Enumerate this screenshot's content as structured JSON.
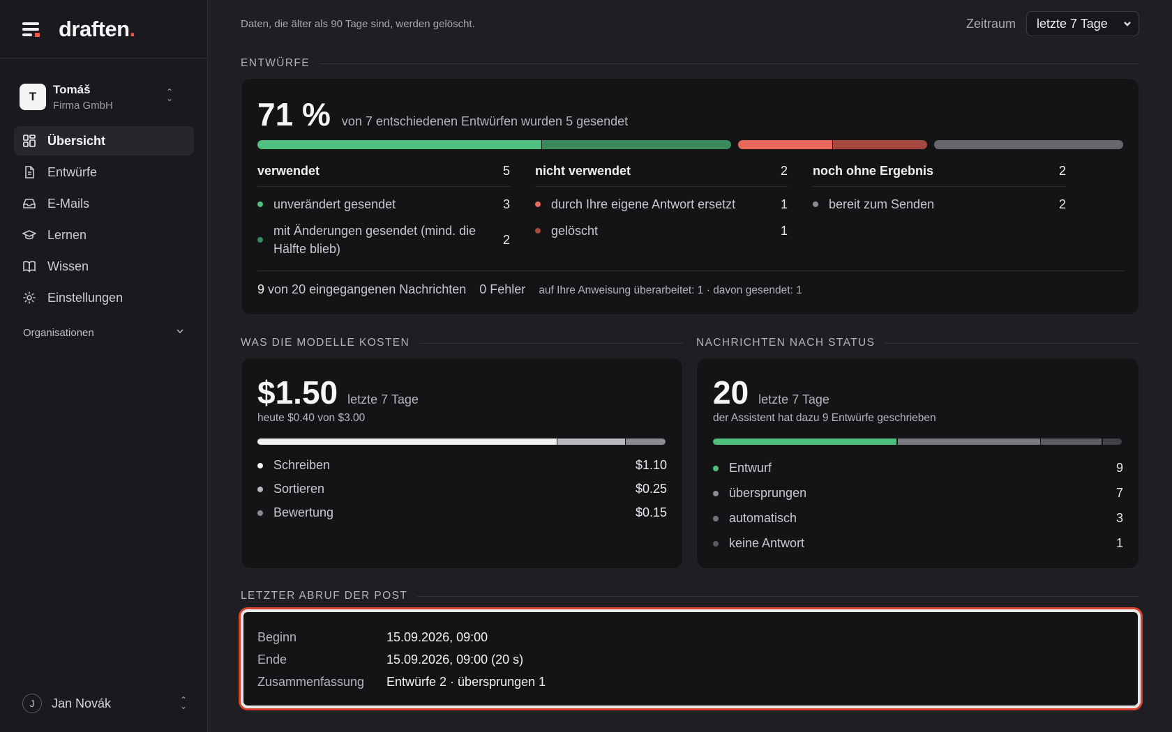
{
  "brand": {
    "logo": "draften",
    "logo_dot": "."
  },
  "account": {
    "initial": "T",
    "name": "Tomáš",
    "org": "Firma GmbH"
  },
  "nav": [
    {
      "label": "Übersicht",
      "icon": "dashboard-icon",
      "active": true
    },
    {
      "label": "Entwürfe",
      "icon": "document-icon"
    },
    {
      "label": "E-Mails",
      "icon": "inbox-icon"
    },
    {
      "label": "Lernen",
      "icon": "graduation-cap-icon"
    },
    {
      "label": "Wissen",
      "icon": "book-icon"
    },
    {
      "label": "Einstellungen",
      "icon": "gear-icon"
    }
  ],
  "organizations_label": "Organisationen",
  "user": {
    "initial": "J",
    "name": "Jan Novák"
  },
  "topbar": {
    "note": "Daten, die älter als 90 Tage sind, werden gelöscht.",
    "range_label": "Zeitraum",
    "range_value": "letzte 7 Tage"
  },
  "drafts": {
    "section_title": "ENTWÜRFE",
    "percent": "71 %",
    "percent_value": 71,
    "summary": "von 7 entschiedenen Entwürfen wurden 5 gesendet",
    "bar_segments": [
      {
        "name": "unverändert gesendet",
        "value": 3,
        "color": "#4fbf7f"
      },
      {
        "name": "mit Änderungen gesendet",
        "value": 2,
        "color": "#3a8a5c"
      },
      {
        "name": "durch Ihre eigene Antwort ersetzt",
        "value": 1,
        "color": "#e8695c"
      },
      {
        "name": "gelöscht",
        "value": 1,
        "color": "#a6483f"
      },
      {
        "name": "bereit zum Senden",
        "value": 2,
        "color": "#66666e"
      }
    ],
    "columns": [
      {
        "title": "verwendet",
        "count": "5",
        "items": [
          {
            "label": "unverändert gesendet",
            "value": "3",
            "color": "#4fbf7f"
          },
          {
            "label": "mit Änderungen gesendet (mind. die Hälfte blieb)",
            "value": "2",
            "color": "#3a8a5c"
          }
        ]
      },
      {
        "title": "nicht verwendet",
        "count": "2",
        "items": [
          {
            "label": "durch Ihre eigene Antwort ersetzt",
            "value": "1",
            "color": "#e8695c"
          },
          {
            "label": "gelöscht",
            "value": "1",
            "color": "#a6483f"
          }
        ]
      },
      {
        "title": "noch ohne Ergebnis",
        "count": "2",
        "items": [
          {
            "label": "bereit zum Senden",
            "value": "2",
            "color": "#8a8a92"
          }
        ]
      }
    ],
    "footer": {
      "received_count": "9",
      "received_text": "von 20 eingegangenen Nachrichten",
      "errors": "0 Fehler",
      "revised": "auf Ihre Anweisung überarbeitet: 1 · davon gesendet: 1"
    }
  },
  "costs": {
    "section_title": "WAS DIE MODELLE KOSTEN",
    "total": "$1.50",
    "period": "letzte 7 Tage",
    "today": "heute $0.40 von $3.00",
    "items": [
      {
        "label": "Schreiben",
        "value": "$1.10",
        "amount": 1.1,
        "color": "#f0f0f2"
      },
      {
        "label": "Sortieren",
        "value": "$0.25",
        "amount": 0.25,
        "color": "#b8b8be"
      },
      {
        "label": "Bewertung",
        "value": "$0.15",
        "amount": 0.15,
        "color": "#8a8a92"
      }
    ]
  },
  "messages": {
    "section_title": "NACHRICHTEN NACH STATUS",
    "total": "20",
    "period": "letzte 7 Tage",
    "note": "der Assistent hat dazu 9 Entwürfe geschrieben",
    "items": [
      {
        "label": "Entwurf",
        "value": "9",
        "amount": 9,
        "color": "#4fbf7f"
      },
      {
        "label": "übersprungen",
        "value": "7",
        "amount": 7,
        "color": "#7a7a82"
      },
      {
        "label": "automatisch",
        "value": "3",
        "amount": 3,
        "color": "#5c5c64"
      },
      {
        "label": "keine Antwort",
        "value": "1",
        "amount": 1,
        "color": "#404046"
      }
    ]
  },
  "fetch": {
    "section_title": "LETZTER ABRUF DER POST",
    "rows": [
      {
        "key": "Beginn",
        "value": "15.09.2026, 09:00"
      },
      {
        "key": "Ende",
        "value": "15.09.2026, 09:00 (20 s)"
      },
      {
        "key": "Zusammenfassung",
        "value": "Entwürfe 2 · übersprungen 1"
      }
    ]
  }
}
